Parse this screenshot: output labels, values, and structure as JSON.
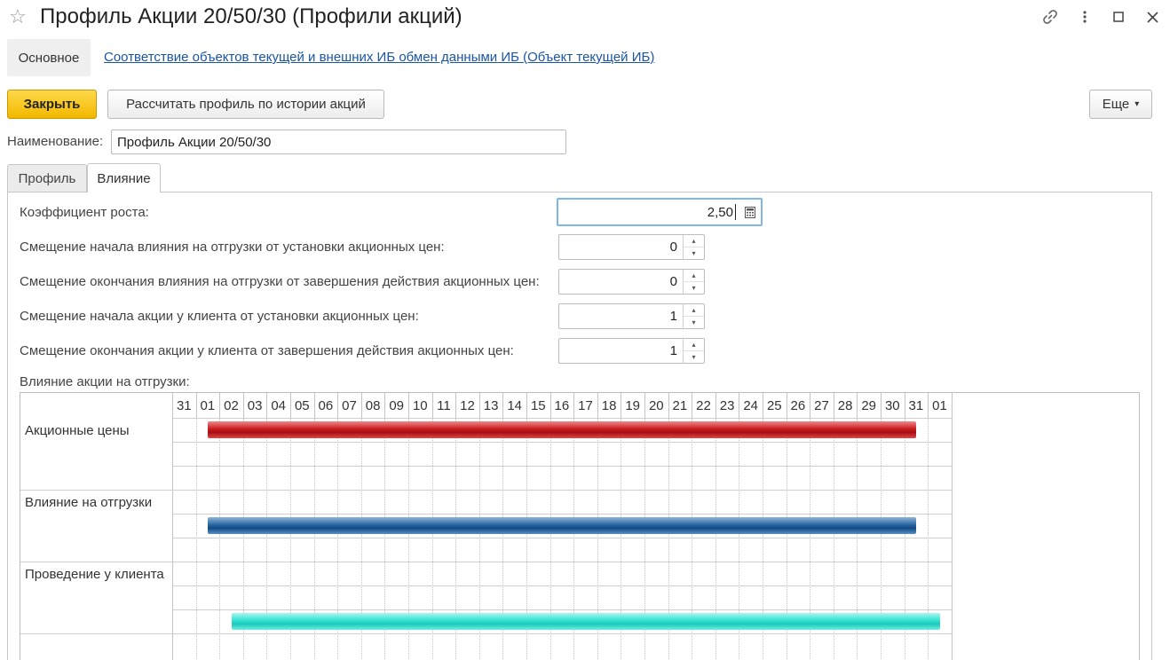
{
  "window": {
    "title": "Профиль Акции 20/50/30 (Профили акций)"
  },
  "nav": {
    "main": "Основное",
    "link": "Соответствие объектов текущей и внешних ИБ обмен данными ИБ (Объект текущей ИБ)"
  },
  "toolbar": {
    "close": "Закрыть",
    "calculate": "Рассчитать профиль по истории акций",
    "more": "Еще",
    "more_arrow": "▾"
  },
  "name_field": {
    "label": "Наименование:",
    "value": "Профиль Акции 20/50/30"
  },
  "tabs": [
    {
      "label": "Профиль",
      "active": false
    },
    {
      "label": "Влияние",
      "active": true
    }
  ],
  "fields": [
    {
      "label": "Коэффициент роста:",
      "value": "2,50"
    },
    {
      "label": "Смещение начала влияния на отгрузки от установки акционных цен:",
      "value": "0"
    },
    {
      "label": "Смещение окончания влияния на отгрузки от завершения действия акционных цен:",
      "value": "0"
    },
    {
      "label": "Смещение начала акции у клиента от установки акционных цен:",
      "value": "1"
    },
    {
      "label": "Смещение окончания акции у клиента от завершения действия акционных цен:",
      "value": "1"
    }
  ],
  "gantt": {
    "label": "Влияние акции на отгрузки:",
    "days": [
      "31",
      "01",
      "02",
      "03",
      "04",
      "05",
      "06",
      "07",
      "08",
      "09",
      "10",
      "11",
      "12",
      "13",
      "14",
      "15",
      "16",
      "17",
      "18",
      "19",
      "20",
      "21",
      "22",
      "23",
      "24",
      "25",
      "26",
      "27",
      "28",
      "29",
      "30",
      "31",
      "01"
    ],
    "rows": [
      {
        "label": "Акционные цены",
        "bar": {
          "start_day_index": 1,
          "end_day_index": 31,
          "sub_row": 0,
          "color": "#c0161b"
        }
      },
      {
        "label": "Влияние на отгрузки",
        "bar": {
          "start_day_index": 1,
          "end_day_index": 31,
          "sub_row": 1,
          "color": "#1a5592"
        }
      },
      {
        "label": "Проведение у клиента",
        "bar": {
          "start_day_index": 2,
          "end_day_index": 32,
          "sub_row": 2,
          "color": "#27dccb"
        }
      }
    ]
  }
}
